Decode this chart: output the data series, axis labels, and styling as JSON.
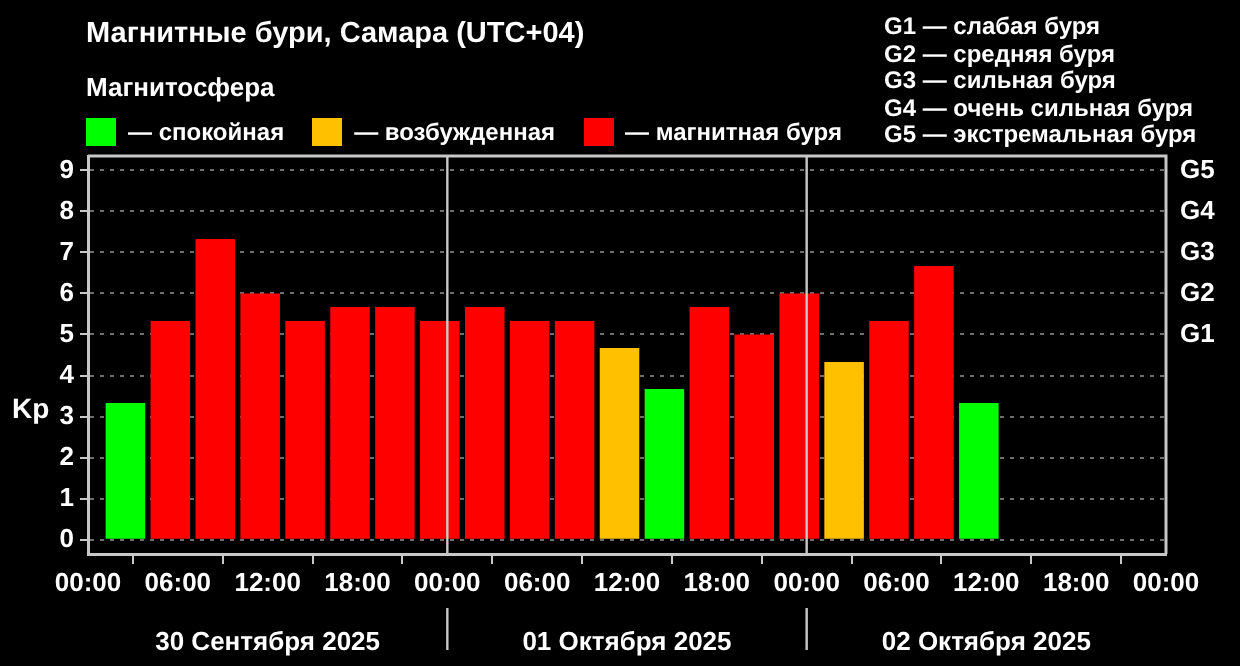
{
  "chart_data": {
    "type": "bar",
    "title": "Магнитные бури, Самара (UTC+04)",
    "ylabel": "Kp",
    "legend_title": "Магнитосфера",
    "legend": "top left",
    "grid": "y",
    "annotations": [
      "G1 — слабая буря",
      "G2 — средняя буря",
      "G3 — сильная буря",
      "G4 — очень сильная буря",
      "G5 — экстремальная буря",
      "30 Сентября 2025",
      "01 Октября 2025",
      "02 Октября 2025",
      "G1",
      "G2",
      "G3",
      "G4",
      "G5"
    ],
    "x": [
      "2025-09-30T02:30",
      "2025-09-30T05:30",
      "2025-09-30T08:30",
      "2025-09-30T11:30",
      "2025-09-30T14:30",
      "2025-09-30T17:30",
      "2025-09-30T20:30",
      "2025-09-30T23:30",
      "2025-10-01T02:30",
      "2025-10-01T05:30",
      "2025-10-01T08:30",
      "2025-10-01T11:30",
      "2025-10-01T14:30",
      "2025-10-01T17:30",
      "2025-10-01T20:30",
      "2025-10-01T23:30",
      "2025-10-02T02:30",
      "2025-10-02T05:30",
      "2025-10-02T08:30",
      "2025-10-02T11:30"
    ],
    "series": [
      {
        "name": "— спокойная",
        "color": "#00ff00",
        "values": [
          3.33,
          null,
          null,
          null,
          null,
          null,
          null,
          null,
          null,
          null,
          null,
          null,
          3.67,
          null,
          null,
          null,
          null,
          null,
          null,
          3.33
        ]
      },
      {
        "name": "— возбужденная",
        "color": "#ffc000",
        "values": [
          null,
          null,
          null,
          null,
          null,
          null,
          null,
          null,
          null,
          null,
          null,
          4.67,
          null,
          null,
          null,
          null,
          4.33,
          null,
          null,
          null
        ]
      },
      {
        "name": "— магнитная буря",
        "color": "#ff0000",
        "values": [
          null,
          5.33,
          7.33,
          6.0,
          5.33,
          5.67,
          5.67,
          5.33,
          5.67,
          5.33,
          5.33,
          null,
          null,
          5.67,
          5.0,
          6.0,
          null,
          5.33,
          6.67,
          null
        ]
      }
    ],
    "xlim": [
      "2025-09-30T00:00",
      "2025-10-03T00:00"
    ],
    "xticks": [
      {
        "value": "2025-09-30T00:00",
        "label": "00:00"
      },
      {
        "value": "2025-09-30T06:00",
        "label": "06:00"
      },
      {
        "value": "2025-09-30T12:00",
        "label": "12:00"
      },
      {
        "value": "2025-09-30T18:00",
        "label": "18:00"
      },
      {
        "value": "2025-10-01T00:00",
        "label": "00:00"
      },
      {
        "value": "2025-10-01T06:00",
        "label": "06:00"
      },
      {
        "value": "2025-10-01T12:00",
        "label": "12:00"
      },
      {
        "value": "2025-10-01T18:00",
        "label": "18:00"
      },
      {
        "value": "2025-10-02T00:00",
        "label": "00:00"
      },
      {
        "value": "2025-10-02T06:00",
        "label": "06:00"
      },
      {
        "value": "2025-10-02T12:00",
        "label": "12:00"
      },
      {
        "value": "2025-10-02T18:00",
        "label": "18:00"
      },
      {
        "value": "2025-10-03T00:00",
        "label": "00:00"
      }
    ],
    "ylim": [
      -0.35,
      9.35
    ],
    "yticks": [
      0,
      1,
      2,
      3,
      4,
      5,
      6,
      7,
      8,
      9
    ],
    "ref_lines": [
      {
        "axis": "x",
        "value": "2025-10-01T00:00",
        "color": "#c8c8c8"
      },
      {
        "axis": "x",
        "value": "2025-10-02T00:00",
        "color": "#c8c8c8"
      }
    ]
  }
}
